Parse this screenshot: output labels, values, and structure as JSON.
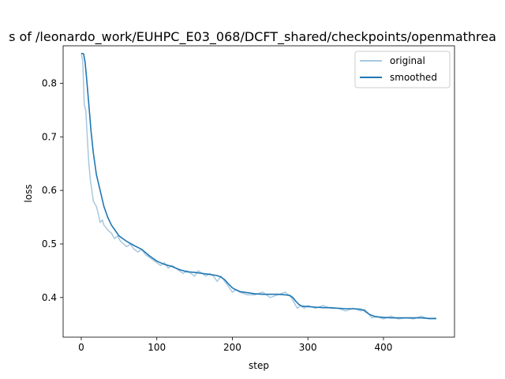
{
  "chart_data": {
    "type": "line",
    "title": "s of /leonardo_work/EUHPC_E03_068/DCFT_shared/checkpoints/openmathrea",
    "xlabel": "step",
    "ylabel": "loss",
    "xlim": [
      -24,
      494
    ],
    "ylim": [
      0.326,
      0.87
    ],
    "xticks": [
      0,
      100,
      200,
      300,
      400
    ],
    "yticks": [
      0.4,
      0.5,
      0.6,
      0.7,
      0.8
    ],
    "xtick_labels": [
      "0",
      "100",
      "200",
      "300",
      "400"
    ],
    "ytick_labels": [
      "0.4",
      "0.5",
      "0.6",
      "0.7",
      "0.8"
    ],
    "grid": false,
    "legend_position": "top-right",
    "series": [
      {
        "name": "original",
        "color": "#a6c8e0",
        "x": [
          0,
          2,
          4,
          6,
          8,
          10,
          12,
          14,
          16,
          18,
          20,
          22,
          25,
          28,
          30,
          33,
          36,
          40,
          44,
          48,
          52,
          56,
          60,
          65,
          70,
          75,
          80,
          85,
          90,
          95,
          100,
          105,
          110,
          115,
          120,
          125,
          130,
          135,
          140,
          145,
          150,
          155,
          160,
          165,
          170,
          175,
          180,
          185,
          190,
          195,
          200,
          205,
          210,
          220,
          230,
          240,
          250,
          260,
          270,
          278,
          282,
          286,
          290,
          295,
          300,
          310,
          320,
          330,
          340,
          350,
          360,
          370,
          375,
          380,
          385,
          390,
          400,
          410,
          420,
          430,
          440,
          450,
          460,
          470
        ],
        "y": [
          0.856,
          0.84,
          0.76,
          0.75,
          0.7,
          0.65,
          0.62,
          0.6,
          0.58,
          0.575,
          0.57,
          0.56,
          0.54,
          0.545,
          0.535,
          0.53,
          0.525,
          0.52,
          0.51,
          0.515,
          0.505,
          0.5,
          0.495,
          0.5,
          0.49,
          0.485,
          0.49,
          0.48,
          0.475,
          0.47,
          0.465,
          0.46,
          0.465,
          0.455,
          0.46,
          0.455,
          0.45,
          0.445,
          0.45,
          0.445,
          0.44,
          0.45,
          0.445,
          0.44,
          0.445,
          0.44,
          0.43,
          0.44,
          0.43,
          0.42,
          0.41,
          0.415,
          0.41,
          0.405,
          0.405,
          0.41,
          0.4,
          0.405,
          0.41,
          0.4,
          0.39,
          0.38,
          0.385,
          0.38,
          0.385,
          0.38,
          0.385,
          0.38,
          0.38,
          0.375,
          0.38,
          0.375,
          0.378,
          0.37,
          0.362,
          0.365,
          0.36,
          0.365,
          0.36,
          0.362,
          0.36,
          0.365,
          0.36,
          0.36
        ]
      },
      {
        "name": "smoothed",
        "color": "#1f77b4",
        "x": [
          0,
          3,
          5,
          7,
          10,
          13,
          16,
          20,
          25,
          30,
          35,
          40,
          45,
          50,
          60,
          70,
          80,
          90,
          100,
          110,
          120,
          130,
          140,
          150,
          160,
          170,
          180,
          185,
          190,
          195,
          200,
          205,
          210,
          220,
          230,
          240,
          250,
          260,
          270,
          276,
          280,
          284,
          288,
          292,
          300,
          310,
          320,
          330,
          340,
          350,
          360,
          370,
          374,
          378,
          382,
          386,
          390,
          400,
          410,
          420,
          430,
          440,
          450,
          460,
          470
        ],
        "y": [
          0.856,
          0.855,
          0.84,
          0.81,
          0.76,
          0.71,
          0.67,
          0.63,
          0.6,
          0.57,
          0.55,
          0.535,
          0.525,
          0.515,
          0.505,
          0.497,
          0.49,
          0.478,
          0.468,
          0.462,
          0.458,
          0.452,
          0.448,
          0.447,
          0.445,
          0.443,
          0.441,
          0.438,
          0.433,
          0.425,
          0.418,
          0.414,
          0.411,
          0.409,
          0.407,
          0.406,
          0.406,
          0.406,
          0.405,
          0.404,
          0.4,
          0.393,
          0.387,
          0.384,
          0.383,
          0.382,
          0.381,
          0.381,
          0.38,
          0.379,
          0.379,
          0.378,
          0.376,
          0.372,
          0.368,
          0.366,
          0.364,
          0.363,
          0.362,
          0.362,
          0.362,
          0.362,
          0.362,
          0.361,
          0.361
        ]
      }
    ]
  }
}
